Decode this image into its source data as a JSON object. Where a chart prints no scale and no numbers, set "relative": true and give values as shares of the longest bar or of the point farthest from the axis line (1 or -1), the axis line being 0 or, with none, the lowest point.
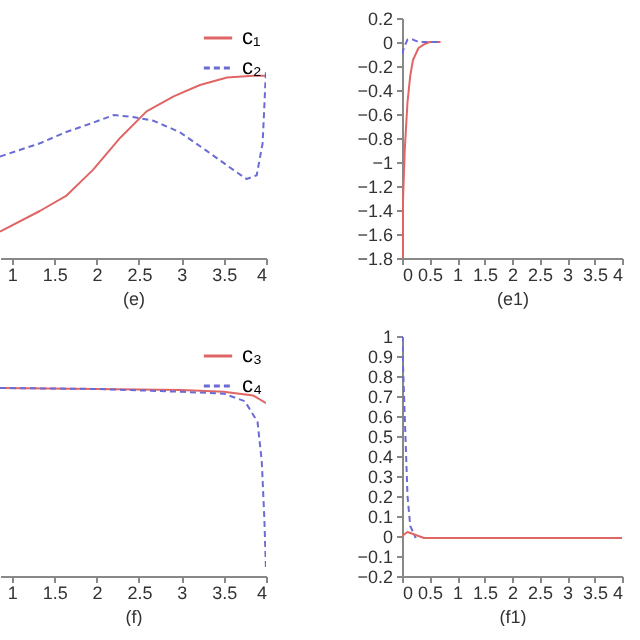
{
  "chart_data": [
    {
      "type": "line",
      "xlabel": "(e)",
      "xlim": [
        0.86,
        4
      ],
      "xticks": [
        1,
        1.5,
        2,
        2.5,
        3,
        3.5,
        4
      ],
      "relative": true,
      "legend": "top right",
      "series": [
        {
          "name": "c₁",
          "color": "#e06666",
          "line_style": "solid",
          "x": [
            0.86,
            1.33,
            1.64,
            1.96,
            2.28,
            2.59,
            2.91,
            3.22,
            3.54,
            3.85,
            4.0
          ],
          "values": [
            0.14,
            0.25,
            0.33,
            0.47,
            0.64,
            0.78,
            0.86,
            0.92,
            0.96,
            0.97,
            0.97
          ]
        },
        {
          "name": "c₂",
          "color": "#6b6bd6",
          "line_style": "dashed",
          "x": [
            0.86,
            1.33,
            1.64,
            1.96,
            2.2,
            2.43,
            2.67,
            2.98,
            3.3,
            3.61,
            3.77,
            3.89,
            3.96,
            4.0
          ],
          "values": [
            0.54,
            0.61,
            0.67,
            0.72,
            0.76,
            0.75,
            0.73,
            0.67,
            0.57,
            0.47,
            0.42,
            0.44,
            0.61,
            1.0
          ]
        }
      ]
    },
    {
      "type": "line",
      "xlabel": "(e1)",
      "xlim": [
        0,
        4
      ],
      "xticks": [
        0,
        0.5,
        1,
        1.5,
        2,
        2.5,
        3,
        3.5,
        4
      ],
      "ylim": [
        -1.8,
        0.2
      ],
      "yticks": [
        -1.8,
        -1.6,
        -1.4,
        -1.2,
        -1,
        -0.8,
        -0.6,
        -0.4,
        -0.2,
        0,
        0.2
      ],
      "series": [
        {
          "color": "#e06666",
          "line_style": "solid",
          "x": [
            0,
            0.02,
            0.05,
            0.1,
            0.15,
            0.2,
            0.3,
            0.4,
            0.5,
            0.7
          ],
          "values": [
            -1.8,
            -1.3,
            -0.9,
            -0.5,
            -0.28,
            -0.15,
            -0.05,
            -0.02,
            0,
            0
          ]
        },
        {
          "color": "#6b6bd6",
          "line_style": "dashed",
          "x": [
            0,
            0.05,
            0.1,
            0.2,
            0.3,
            0.5,
            0.7
          ],
          "values": [
            -0.1,
            -0.03,
            0.02,
            0.02,
            0,
            0,
            0
          ]
        }
      ]
    },
    {
      "type": "line",
      "xlabel": "(f)",
      "xlim": [
        0.86,
        4
      ],
      "xticks": [
        1,
        1.5,
        2,
        2.5,
        3,
        3.5,
        4
      ],
      "relative": true,
      "legend": "top right",
      "series": [
        {
          "name": "c₃",
          "color": "#e06666",
          "line_style": "solid",
          "x": [
            0.86,
            2,
            3,
            3.5,
            3.85,
            4
          ],
          "values": [
            1.0,
            0.995,
            0.99,
            0.98,
            0.96,
            0.92
          ]
        },
        {
          "name": "c₄",
          "color": "#6b6bd6",
          "line_style": "dashed",
          "x": [
            0.86,
            2,
            3,
            3.5,
            3.75,
            3.9,
            3.95,
            3.98,
            4
          ],
          "values": [
            1.0,
            0.995,
            0.98,
            0.97,
            0.93,
            0.82,
            0.61,
            0.31,
            0.03
          ]
        }
      ]
    },
    {
      "type": "line",
      "xlabel": "(f1)",
      "xlim": [
        0,
        4
      ],
      "xticks": [
        0,
        0.5,
        1,
        1.5,
        2,
        2.5,
        3,
        3.5,
        4
      ],
      "ylim": [
        -0.2,
        1
      ],
      "yticks": [
        -0.2,
        -0.1,
        0,
        0.1,
        0.2,
        0.3,
        0.4,
        0.5,
        0.6,
        0.7,
        0.8,
        0.9,
        1
      ],
      "series": [
        {
          "color": "#6b6bd6",
          "line_style": "dashed",
          "x": [
            0,
            0.05,
            0.1,
            0.15,
            0.25
          ],
          "values": [
            1.0,
            0.6,
            0.2,
            0.05,
            -0.01
          ]
        },
        {
          "color": "#e06666",
          "line_style": "solid",
          "x": [
            0,
            0.1,
            0.2,
            0.4,
            1,
            2,
            3,
            4
          ],
          "values": [
            0,
            0.02,
            0.01,
            -0.01,
            -0.01,
            -0.01,
            -0.01,
            -0.01
          ]
        }
      ]
    }
  ]
}
